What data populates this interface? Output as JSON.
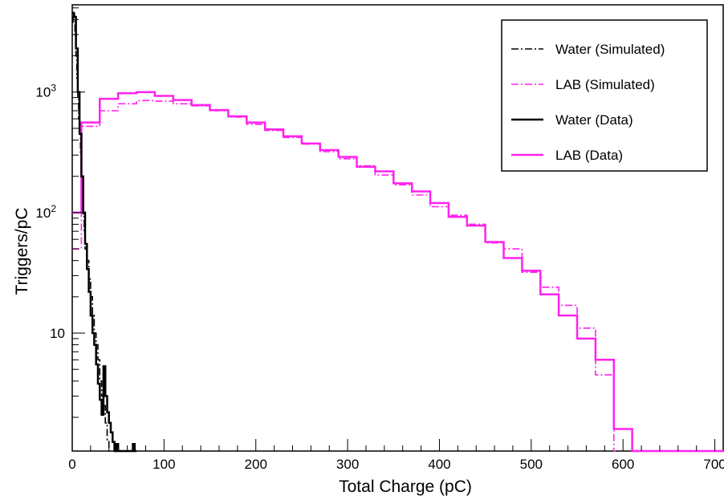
{
  "chart_data": {
    "type": "line",
    "xlabel": "Total Charge (pC)",
    "ylabel": "Triggers/pC",
    "xlim": [
      0,
      710
    ],
    "ylim": [
      1.05,
      5300
    ],
    "yscale": "log",
    "grid": false,
    "legend_position": "top-right",
    "xticks": [
      0,
      100,
      200,
      300,
      400,
      500,
      600,
      700
    ],
    "xtick_labels": [
      "0",
      "100",
      "200",
      "300",
      "400",
      "500",
      "600",
      "700"
    ],
    "yticks": [
      10,
      100,
      1000
    ],
    "ytick_labels": [
      "10",
      "10",
      "10"
    ],
    "ytick_superscripts": [
      "",
      "2",
      "3"
    ],
    "series": [
      {
        "name": "Water (Simulated)",
        "color": "#000000",
        "style": "dashdot",
        "steps": [
          [
            0,
            3800
          ],
          [
            1,
            4700
          ],
          [
            2,
            4300
          ],
          [
            3,
            3000
          ],
          [
            4,
            2000
          ],
          [
            5,
            1300
          ],
          [
            6,
            900
          ],
          [
            7,
            600
          ],
          [
            8,
            450
          ],
          [
            9,
            300
          ],
          [
            10,
            200
          ],
          [
            11,
            140
          ],
          [
            12,
            95
          ],
          [
            13,
            70
          ],
          [
            14,
            50
          ],
          [
            16,
            40
          ],
          [
            18,
            28
          ],
          [
            20,
            20
          ],
          [
            22,
            14
          ],
          [
            24,
            10
          ],
          [
            26,
            8
          ],
          [
            28,
            6
          ],
          [
            30,
            4
          ],
          [
            32,
            3
          ],
          [
            34,
            2.5
          ],
          [
            36,
            1.8
          ],
          [
            38,
            1.3
          ],
          [
            40,
            1
          ]
        ]
      },
      {
        "name": "LAB (Simulated)",
        "color": "#ff22ee",
        "style": "dashdot",
        "steps": [
          [
            0,
            50
          ],
          [
            10,
            520
          ],
          [
            30,
            700
          ],
          [
            50,
            800
          ],
          [
            70,
            850
          ],
          [
            90,
            840
          ],
          [
            110,
            800
          ],
          [
            130,
            770
          ],
          [
            150,
            700
          ],
          [
            170,
            620
          ],
          [
            190,
            540
          ],
          [
            210,
            480
          ],
          [
            230,
            420
          ],
          [
            250,
            370
          ],
          [
            270,
            320
          ],
          [
            290,
            280
          ],
          [
            310,
            245
          ],
          [
            330,
            205
          ],
          [
            350,
            170
          ],
          [
            370,
            140
          ],
          [
            390,
            112
          ],
          [
            410,
            95
          ],
          [
            430,
            80
          ],
          [
            450,
            56
          ],
          [
            470,
            50
          ],
          [
            490,
            32
          ],
          [
            510,
            24
          ],
          [
            530,
            17
          ],
          [
            550,
            11
          ],
          [
            570,
            4.5
          ],
          [
            590,
            1
          ]
        ]
      },
      {
        "name": "Water (Data)",
        "color": "#000000",
        "style": "solid",
        "steps": [
          [
            0,
            4500
          ],
          [
            2,
            4200
          ],
          [
            4,
            2300
          ],
          [
            6,
            1000
          ],
          [
            8,
            450
          ],
          [
            10,
            200
          ],
          [
            12,
            100
          ],
          [
            14,
            55
          ],
          [
            16,
            34
          ],
          [
            18,
            22
          ],
          [
            20,
            14
          ],
          [
            22,
            10
          ],
          [
            24,
            8
          ],
          [
            26,
            5.5
          ],
          [
            28,
            3.8
          ],
          [
            30,
            2.8
          ],
          [
            32,
            2.1
          ],
          [
            34,
            5.3
          ],
          [
            36,
            3
          ],
          [
            38,
            2.2
          ],
          [
            40,
            1.8
          ],
          [
            42,
            1.5
          ],
          [
            44,
            1.25
          ],
          [
            46,
            1
          ],
          [
            48,
            1.2
          ],
          [
            50,
            1
          ],
          [
            66,
            1.2
          ],
          [
            68,
            1
          ]
        ]
      },
      {
        "name": "LAB (Data)",
        "color": "#ff22ee",
        "style": "solid",
        "steps": [
          [
            0,
            100
          ],
          [
            10,
            560
          ],
          [
            30,
            880
          ],
          [
            50,
            980
          ],
          [
            70,
            1000
          ],
          [
            90,
            930
          ],
          [
            110,
            860
          ],
          [
            130,
            780
          ],
          [
            150,
            710
          ],
          [
            170,
            630
          ],
          [
            190,
            560
          ],
          [
            210,
            490
          ],
          [
            230,
            430
          ],
          [
            250,
            375
          ],
          [
            270,
            330
          ],
          [
            290,
            290
          ],
          [
            310,
            240
          ],
          [
            330,
            220
          ],
          [
            350,
            175
          ],
          [
            370,
            150
          ],
          [
            390,
            120
          ],
          [
            410,
            92
          ],
          [
            430,
            78
          ],
          [
            450,
            57
          ],
          [
            470,
            42
          ],
          [
            490,
            33
          ],
          [
            510,
            21
          ],
          [
            530,
            14
          ],
          [
            550,
            9
          ],
          [
            570,
            6
          ],
          [
            590,
            1.6
          ],
          [
            610,
            1
          ]
        ]
      }
    ]
  }
}
